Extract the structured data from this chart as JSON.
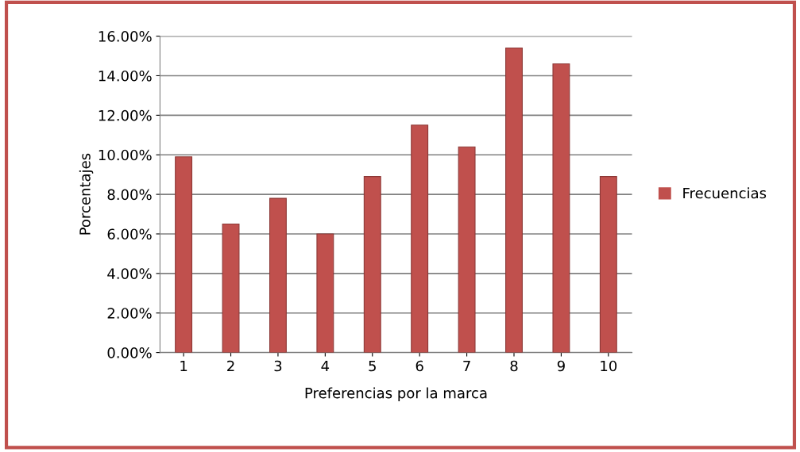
{
  "chart_data": {
    "type": "bar",
    "xlabel": "Preferencias por la marca",
    "ylabel": "Porcentajes",
    "categories": [
      "1",
      "2",
      "3",
      "4",
      "5",
      "6",
      "7",
      "8",
      "9",
      "10"
    ],
    "series": [
      {
        "name": "Frecuencias",
        "color": "#c0504d",
        "values": [
          9.9,
          6.5,
          7.8,
          6.0,
          8.9,
          11.5,
          10.4,
          15.4,
          14.6,
          8.9
        ]
      }
    ],
    "ylim": [
      0,
      16
    ],
    "yticks": [
      {
        "value": 0,
        "label": "0.00%"
      },
      {
        "value": 2,
        "label": "2.00%"
      },
      {
        "value": 4,
        "label": "4.00%"
      },
      {
        "value": 6,
        "label": "6.00%"
      },
      {
        "value": 8,
        "label": "8.00%"
      },
      {
        "value": 10,
        "label": "10.00%"
      },
      {
        "value": 12,
        "label": "12.00%"
      },
      {
        "value": 14,
        "label": "14.00%"
      },
      {
        "value": 16,
        "label": "16.00%"
      }
    ],
    "grid": "y",
    "legend": "right"
  }
}
